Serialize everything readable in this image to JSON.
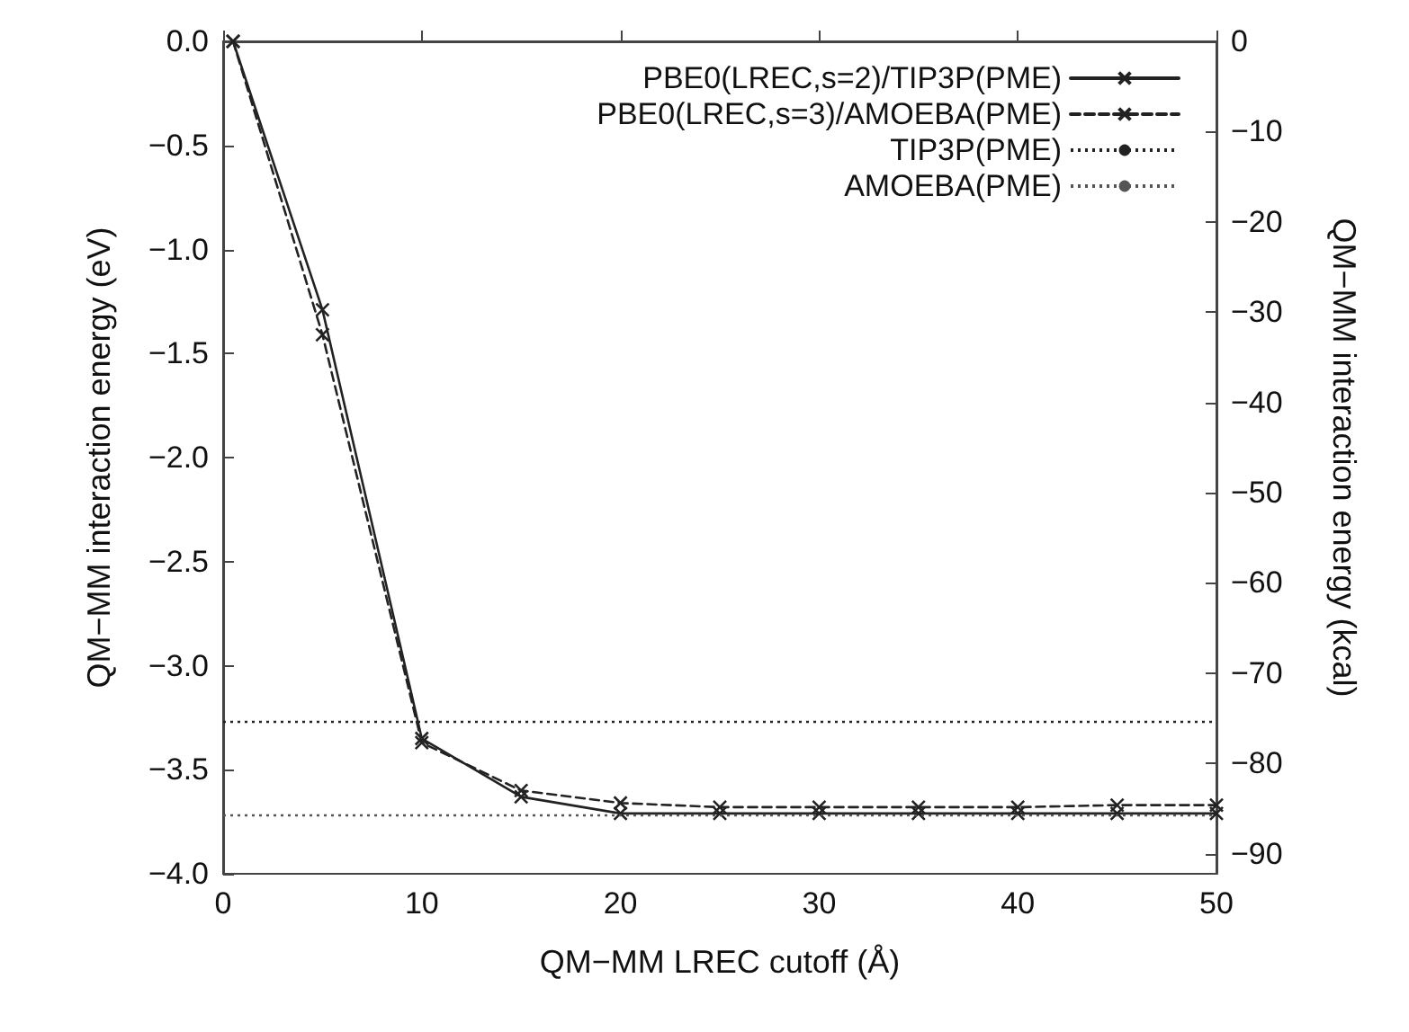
{
  "chart_data": {
    "type": "line",
    "xlabel": "QM−MM LREC cutoff (Å)",
    "ylabel": "QM−MM interaction energy (eV)",
    "y2label": "QM−MM interaction energy (kcal)",
    "xlim": [
      0,
      50
    ],
    "xticks": [
      0,
      10,
      20,
      30,
      40,
      50
    ],
    "ylim": [
      -4,
      0
    ],
    "yticks": [
      {
        "value": -4,
        "label": "−4.0"
      },
      {
        "value": -3.5,
        "label": "−3.5"
      },
      {
        "value": -3,
        "label": "−3.0"
      },
      {
        "value": -2.5,
        "label": "−2.5"
      },
      {
        "value": -2,
        "label": "−2.0"
      },
      {
        "value": -1.5,
        "label": "−1.5"
      },
      {
        "value": -1,
        "label": "−1.0"
      },
      {
        "value": -0.5,
        "label": "−0.5"
      },
      {
        "value": 0,
        "label": "0.0"
      }
    ],
    "y2lim": [
      -92.24,
      0
    ],
    "y2ticks": [
      -90,
      -80,
      -70,
      -60,
      -50,
      -40,
      -30,
      -20,
      -10,
      0
    ],
    "x": [
      0.5,
      5,
      10,
      15,
      20,
      25,
      30,
      35,
      40,
      45,
      50
    ],
    "series": [
      {
        "name": "PBE0(LREC,s=2)/TIP3P(PME)",
        "color": "#222222",
        "marker": "cross",
        "line_style": "solid",
        "values": [
          0,
          -1.29,
          -3.35,
          -3.63,
          -3.71,
          -3.71,
          -3.71,
          -3.71,
          -3.71,
          -3.71,
          -3.71
        ]
      },
      {
        "name": "PBE0(LREC,s=3)/AMOEBA(PME)",
        "color": "#222222",
        "marker": "cross",
        "line_style": "dashed",
        "values": [
          0,
          -1.41,
          -3.37,
          -3.6,
          -3.66,
          -3.68,
          -3.68,
          -3.68,
          -3.68,
          -3.67,
          -3.67
        ]
      }
    ],
    "ref_lines": [
      {
        "axis": "y",
        "value": -3.27,
        "label": "TIP3P(PME)",
        "color": "#222222",
        "line_style": "dotted"
      },
      {
        "axis": "y",
        "value": -3.72,
        "label": "AMOEBA(PME)",
        "color": "#555555",
        "line_style": "dotted"
      }
    ],
    "grid": false,
    "legend": "top right"
  }
}
